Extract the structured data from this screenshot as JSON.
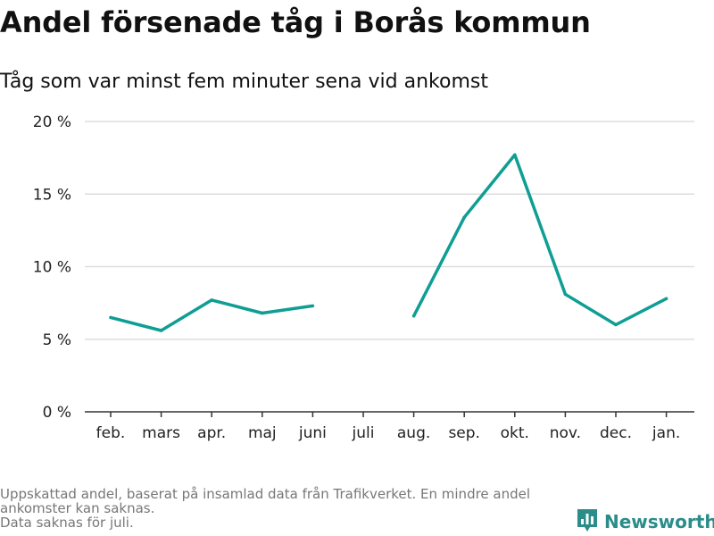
{
  "title": "Andel försenade tåg i Borås kommun",
  "subtitle": "Tåg som var minst fem minuter sena vid ankomst",
  "footnote": {
    "line1": "Uppskattad andel, baserat på insamlad data från Trafikverket. En mindre andel ankomster kan saknas.",
    "line2": "Data saknas för juli."
  },
  "brand": {
    "name": "Newsworthy",
    "color": "#2a8d8a",
    "icon": "bar-chart-logo-icon"
  },
  "chart_data": {
    "type": "line",
    "categories": [
      "feb.",
      "mars",
      "apr.",
      "maj",
      "juni",
      "juli",
      "aug.",
      "sep.",
      "okt.",
      "nov.",
      "dec.",
      "jan."
    ],
    "series": [
      {
        "values": [
          6.5,
          5.6,
          7.7,
          6.8,
          7.3,
          null,
          6.6,
          13.4,
          17.7,
          8.1,
          6.0,
          7.8
        ],
        "color": "#0f9e94"
      }
    ],
    "yticks": [
      0,
      5,
      10,
      15,
      20
    ],
    "ytick_labels": [
      "0 %",
      "5 %",
      "10 %",
      "15 %",
      "20 %"
    ],
    "ylim": [
      0,
      20
    ],
    "grid": true,
    "xlabel": "",
    "ylabel": ""
  }
}
